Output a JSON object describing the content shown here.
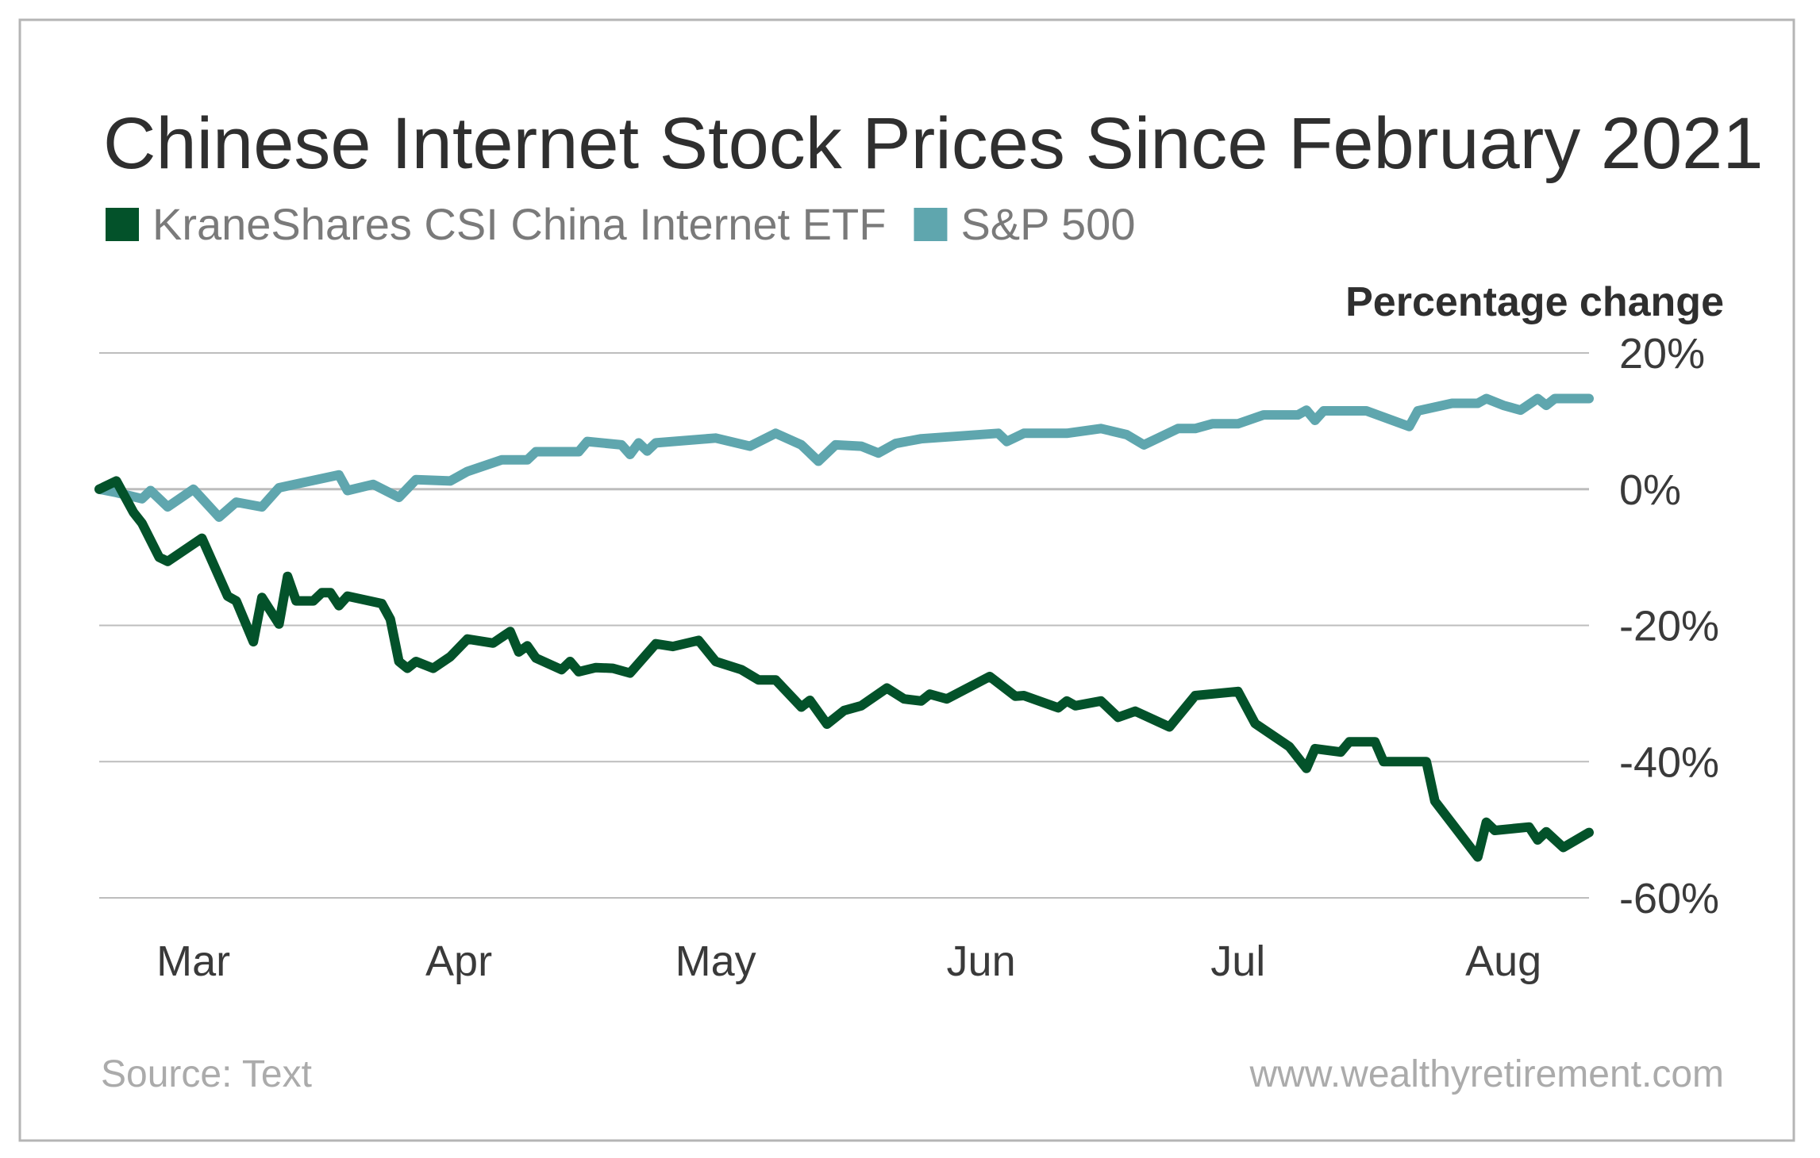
{
  "chart_data": {
    "type": "line",
    "title": "Chinese Internet Stock Prices Since February 2021",
    "ylabel": "Percentage change",
    "xlabel": "",
    "ylim": [
      -60,
      20
    ],
    "yticks": [
      20,
      0,
      -20,
      -40,
      -60
    ],
    "ytick_labels": [
      "20%",
      "0%",
      "-20%",
      "-40%",
      "-60%"
    ],
    "xlim": [
      "2021-02-18",
      "2021-08-11"
    ],
    "xticks": [
      "2021-03-01",
      "2021-04-01",
      "2021-05-01",
      "2021-06-01",
      "2021-07-01",
      "2021-08-01"
    ],
    "xtick_labels": [
      "Mar",
      "Apr",
      "May",
      "Jun",
      "Jul",
      "Aug"
    ],
    "grid": "horizontal",
    "legend_position": "top-left",
    "series": [
      {
        "name": "KraneShares CSI China Internet ETF",
        "color": "#03522a",
        "points": [
          [
            "2021-02-18",
            0
          ],
          [
            "2021-02-20",
            1.2
          ],
          [
            "2021-02-22",
            -3.4
          ],
          [
            "2021-02-23",
            -5
          ],
          [
            "2021-02-25",
            -10
          ],
          [
            "2021-02-26",
            -10.6
          ],
          [
            "2021-03-02",
            -7.2
          ],
          [
            "2021-03-05",
            -15.7
          ],
          [
            "2021-03-06",
            -16.4
          ],
          [
            "2021-03-08",
            -22.4
          ],
          [
            "2021-03-09",
            -15.9
          ],
          [
            "2021-03-11",
            -19.8
          ],
          [
            "2021-03-12",
            -12.8
          ],
          [
            "2021-03-13",
            -16.4
          ],
          [
            "2021-03-15",
            -16.4
          ],
          [
            "2021-03-16",
            -15.2
          ],
          [
            "2021-03-17",
            -15.2
          ],
          [
            "2021-03-18",
            -17.1
          ],
          [
            "2021-03-19",
            -15.7
          ],
          [
            "2021-03-23",
            -16.8
          ],
          [
            "2021-03-24",
            -19.1
          ],
          [
            "2021-03-25",
            -25.3
          ],
          [
            "2021-03-26",
            -26.3
          ],
          [
            "2021-03-27",
            -25.3
          ],
          [
            "2021-03-29",
            -26.3
          ],
          [
            "2021-03-31",
            -24.6
          ],
          [
            "2021-04-02",
            -22
          ],
          [
            "2021-04-05",
            -22.6
          ],
          [
            "2021-04-07",
            -20.9
          ],
          [
            "2021-04-08",
            -23.9
          ],
          [
            "2021-04-09",
            -23
          ],
          [
            "2021-04-10",
            -24.8
          ],
          [
            "2021-04-13",
            -26.5
          ],
          [
            "2021-04-14",
            -25.3
          ],
          [
            "2021-04-15",
            -26.8
          ],
          [
            "2021-04-17",
            -26.2
          ],
          [
            "2021-04-19",
            -26.3
          ],
          [
            "2021-04-21",
            -27
          ],
          [
            "2021-04-24",
            -22.7
          ],
          [
            "2021-04-26",
            -23.1
          ],
          [
            "2021-04-29",
            -22.2
          ],
          [
            "2021-05-01",
            -25.3
          ],
          [
            "2021-05-04",
            -26.5
          ],
          [
            "2021-05-06",
            -28
          ],
          [
            "2021-05-08",
            -28
          ],
          [
            "2021-05-11",
            -32
          ],
          [
            "2021-05-12",
            -31
          ],
          [
            "2021-05-14",
            -34.5
          ],
          [
            "2021-05-16",
            -32.5
          ],
          [
            "2021-05-18",
            -31.8
          ],
          [
            "2021-05-21",
            -29.2
          ],
          [
            "2021-05-23",
            -30.8
          ],
          [
            "2021-05-25",
            -31.1
          ],
          [
            "2021-05-26",
            -30.1
          ],
          [
            "2021-05-28",
            -30.8
          ],
          [
            "2021-06-02",
            -27.5
          ],
          [
            "2021-06-05",
            -30.4
          ],
          [
            "2021-06-06",
            -30.3
          ],
          [
            "2021-06-10",
            -32.1
          ],
          [
            "2021-06-11",
            -31.1
          ],
          [
            "2021-06-12",
            -31.8
          ],
          [
            "2021-06-15",
            -31.1
          ],
          [
            "2021-06-17",
            -33.5
          ],
          [
            "2021-06-19",
            -32.6
          ],
          [
            "2021-06-23",
            -34.9
          ],
          [
            "2021-06-26",
            -30.3
          ],
          [
            "2021-07-01",
            -29.7
          ],
          [
            "2021-07-03",
            -34.4
          ],
          [
            "2021-07-07",
            -37.8
          ],
          [
            "2021-07-09",
            -41
          ],
          [
            "2021-07-10",
            -38.1
          ],
          [
            "2021-07-13",
            -38.6
          ],
          [
            "2021-07-14",
            -37.1
          ],
          [
            "2021-07-17",
            -37.1
          ],
          [
            "2021-07-18",
            -40
          ],
          [
            "2021-07-23",
            -40
          ],
          [
            "2021-07-24",
            -45.8
          ],
          [
            "2021-07-29",
            -54
          ],
          [
            "2021-07-30",
            -48.9
          ],
          [
            "2021-07-31",
            -50.1
          ],
          [
            "2021-08-04",
            -49.6
          ],
          [
            "2021-08-05",
            -51.5
          ],
          [
            "2021-08-06",
            -50.3
          ],
          [
            "2021-08-08",
            -52.6
          ],
          [
            "2021-08-11",
            -50.4
          ]
        ]
      },
      {
        "name": "S&P 500",
        "color": "#5fa6ae",
        "points": [
          [
            "2021-02-18",
            0
          ],
          [
            "2021-02-20",
            -0.5
          ],
          [
            "2021-02-23",
            -1.4
          ],
          [
            "2021-02-24",
            -0.2
          ],
          [
            "2021-02-26",
            -2.6
          ],
          [
            "2021-03-01",
            0
          ],
          [
            "2021-03-04",
            -4.1
          ],
          [
            "2021-03-06",
            -1.9
          ],
          [
            "2021-03-09",
            -2.6
          ],
          [
            "2021-03-11",
            0.2
          ],
          [
            "2021-03-18",
            2.1
          ],
          [
            "2021-03-19",
            -0.2
          ],
          [
            "2021-03-22",
            0.7
          ],
          [
            "2021-03-25",
            -1.2
          ],
          [
            "2021-03-27",
            1.4
          ],
          [
            "2021-03-31",
            1.2
          ],
          [
            "2021-04-02",
            2.6
          ],
          [
            "2021-04-06",
            4.3
          ],
          [
            "2021-04-09",
            4.3
          ],
          [
            "2021-04-10",
            5.5
          ],
          [
            "2021-04-15",
            5.5
          ],
          [
            "2021-04-16",
            7
          ],
          [
            "2021-04-20",
            6.5
          ],
          [
            "2021-04-21",
            5.1
          ],
          [
            "2021-04-22",
            6.8
          ],
          [
            "2021-04-23",
            5.6
          ],
          [
            "2021-04-24",
            6.8
          ],
          [
            "2021-05-01",
            7.5
          ],
          [
            "2021-05-05",
            6.3
          ],
          [
            "2021-05-08",
            8.2
          ],
          [
            "2021-05-11",
            6.5
          ],
          [
            "2021-05-13",
            4.1
          ],
          [
            "2021-05-15",
            6.5
          ],
          [
            "2021-05-18",
            6.3
          ],
          [
            "2021-05-20",
            5.3
          ],
          [
            "2021-05-22",
            6.7
          ],
          [
            "2021-05-25",
            7.4
          ],
          [
            "2021-06-03",
            8.2
          ],
          [
            "2021-06-04",
            7
          ],
          [
            "2021-06-06",
            8.2
          ],
          [
            "2021-06-11",
            8.2
          ],
          [
            "2021-06-15",
            8.9
          ],
          [
            "2021-06-18",
            8
          ],
          [
            "2021-06-20",
            6.5
          ],
          [
            "2021-06-24",
            8.9
          ],
          [
            "2021-06-26",
            8.9
          ],
          [
            "2021-06-28",
            9.6
          ],
          [
            "2021-07-01",
            9.6
          ],
          [
            "2021-07-04",
            10.9
          ],
          [
            "2021-07-08",
            10.9
          ],
          [
            "2021-07-09",
            11.6
          ],
          [
            "2021-07-10",
            10.1
          ],
          [
            "2021-07-11",
            11.5
          ],
          [
            "2021-07-16",
            11.5
          ],
          [
            "2021-07-21",
            9.2
          ],
          [
            "2021-07-22",
            11.5
          ],
          [
            "2021-07-26",
            12.6
          ],
          [
            "2021-07-29",
            12.6
          ],
          [
            "2021-07-30",
            13.3
          ],
          [
            "2021-08-01",
            12.3
          ],
          [
            "2021-08-03",
            11.6
          ],
          [
            "2021-08-05",
            13.3
          ],
          [
            "2021-08-06",
            12.3
          ],
          [
            "2021-08-07",
            13.3
          ],
          [
            "2021-08-11",
            13.3
          ]
        ]
      }
    ]
  },
  "footer": {
    "source": "Source: Text",
    "website": "www.wealthyretirement.com"
  },
  "colors": {
    "border": "#b5b5b5",
    "grid": "#bdbdbd"
  }
}
